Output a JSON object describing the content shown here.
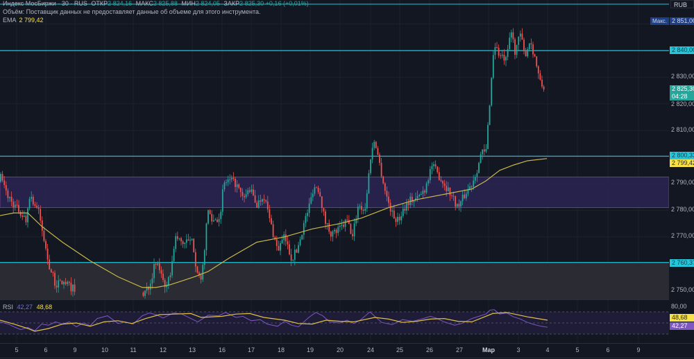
{
  "header": {
    "symbol_line": "Индекс МосБиржи · 30 · RUS",
    "open_label": "ОТКР",
    "open": "2 824,16",
    "high_label": "МАКС",
    "high": "2 825,88",
    "low_label": "МИН",
    "low": "2 824,05",
    "close_label": "ЗАКР",
    "close": "2 825,30",
    "change": "+0,16 (+0,01%)",
    "volume_note": "Объём: Поставщик данных не предоставляет данные об объеме для этого инструмента.",
    "ema_label": "EMA",
    "ema_value": "2 799,42"
  },
  "price_axis": {
    "currency": "RUB",
    "max_label": "Макс.",
    "max_value": "2 851,00",
    "ticks": [
      "2 840,00",
      "2 830,00",
      "2 820,00",
      "2 810,00",
      "2 790,00",
      "2 780,00",
      "2 770,00",
      "2 750,00"
    ],
    "tags": {
      "level_2840": "2 840,00",
      "last_price": "2 825,30",
      "countdown": "04:28",
      "level_2800": "2 800,33",
      "ema": "2 799,42",
      "level_2760": "2 760,37"
    }
  },
  "rsi": {
    "label": "RSI",
    "value": "42,27",
    "ma_value": "48,68",
    "axis_top": "80,00"
  },
  "time_axis": [
    "5",
    "6",
    "9",
    "10",
    "11",
    "12",
    "13",
    "16",
    "17",
    "18",
    "19",
    "20",
    "24",
    "25",
    "26",
    "27",
    "Мар",
    "3",
    "4",
    "5",
    "6",
    "9"
  ],
  "colors": {
    "background": "#131722",
    "up": "#26a69a",
    "down": "#ef5350",
    "level_line": "#26c6da",
    "ema": "#c9b84a",
    "rsi_line": "#7e57c2",
    "rsi_ma": "#e0c24a",
    "zone_purple": "#2a2350",
    "zone_gray": "#2a2b33"
  },
  "chart_data": {
    "type": "candlestick",
    "title": "Индекс МосБиржи · 30 · RUS",
    "xlabel": "",
    "ylabel": "RUB",
    "ylim": [
      2748,
      2852
    ],
    "categories": [
      "5",
      "6",
      "9",
      "10",
      "11",
      "12",
      "13",
      "16",
      "17",
      "18",
      "19",
      "20",
      "24",
      "25",
      "26",
      "27",
      "Мар",
      "3",
      "4"
    ],
    "approx_close_by_session": [
      2788,
      2778,
      2752,
      2750,
      2755,
      2770,
      2780,
      2790,
      2782,
      2768,
      2780,
      2778,
      2795,
      2782,
      2790,
      2785,
      2840,
      2842,
      2825
    ],
    "horizontal_levels": [
      2840.0,
      2800.33,
      2760.37
    ],
    "zones": [
      {
        "name": "purple-zone",
        "from": 2781.0,
        "to": 2792.5
      },
      {
        "name": "gray-zone",
        "from": 2748,
        "to": 2760.37
      }
    ],
    "ema": {
      "last": 2799.42,
      "approx_path": [
        2778,
        2772,
        2760,
        2752,
        2750,
        2752,
        2756,
        2762,
        2768,
        2770,
        2772,
        2775,
        2778,
        2780,
        2783,
        2786,
        2790,
        2795,
        2799.42
      ]
    },
    "rsi": {
      "last": 42.27,
      "ma_last": 48.68,
      "levels": [
        70,
        50,
        30
      ]
    }
  }
}
